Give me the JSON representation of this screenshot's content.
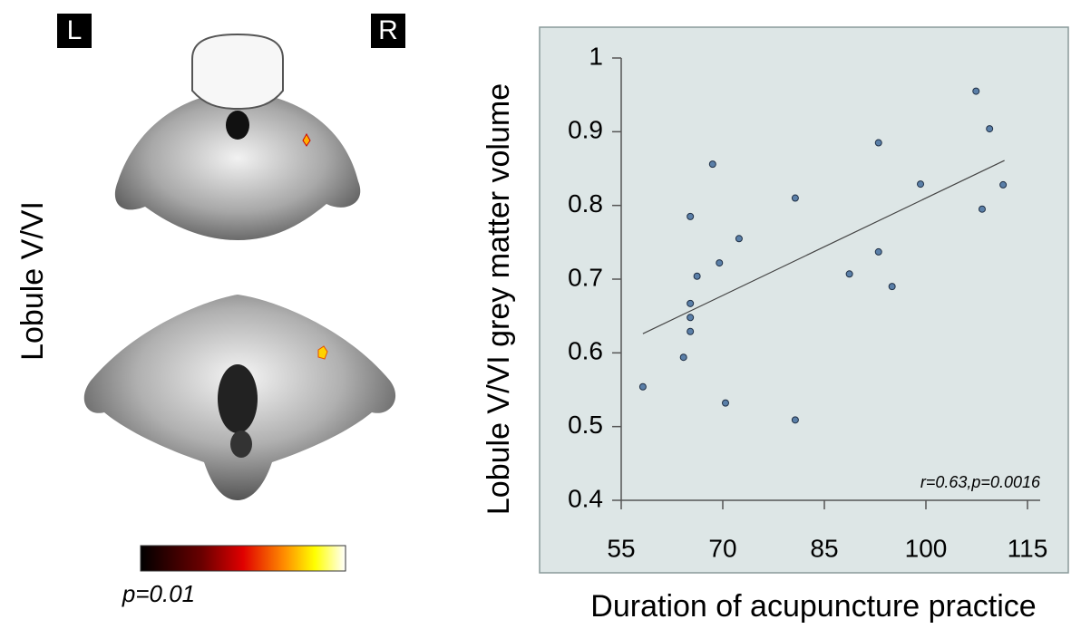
{
  "figure": {
    "left_marker": "L",
    "right_marker": "R",
    "side_label": "Lobule V/VI",
    "colorbar_label": "p=0.01"
  },
  "chart_data": {
    "type": "scatter",
    "ylabel": "Lobule V/VI  grey matter volume",
    "xlabel": "Duration of acupuncture practice",
    "annotation": "r=0.63,p=0.0016",
    "x": [
      58.2,
      64.2,
      65.2,
      65.2,
      65.2,
      65.2,
      66.2,
      68.5,
      69.5,
      70.4,
      72.4,
      80.7,
      80.7,
      88.7,
      93.0,
      93.0,
      95.0,
      99.2,
      107.4,
      108.3,
      109.4,
      111.4
    ],
    "values": [
      0.554,
      0.594,
      0.629,
      0.648,
      0.667,
      0.785,
      0.704,
      0.856,
      0.722,
      0.532,
      0.755,
      0.81,
      0.509,
      0.707,
      0.885,
      0.737,
      0.69,
      0.829,
      0.955,
      0.795,
      0.904,
      0.828
    ],
    "color": "#5a7fa8",
    "trendline": {
      "x": [
        58.2,
        111.6
      ],
      "y": [
        0.626,
        0.861
      ]
    },
    "xlim": [
      55,
      115
    ],
    "xticks": [
      55,
      70,
      85,
      100,
      115
    ],
    "ylim": [
      0.4,
      1
    ],
    "yticks": [
      0.4,
      0.5,
      0.6,
      0.7,
      0.8,
      0.9,
      1
    ]
  }
}
